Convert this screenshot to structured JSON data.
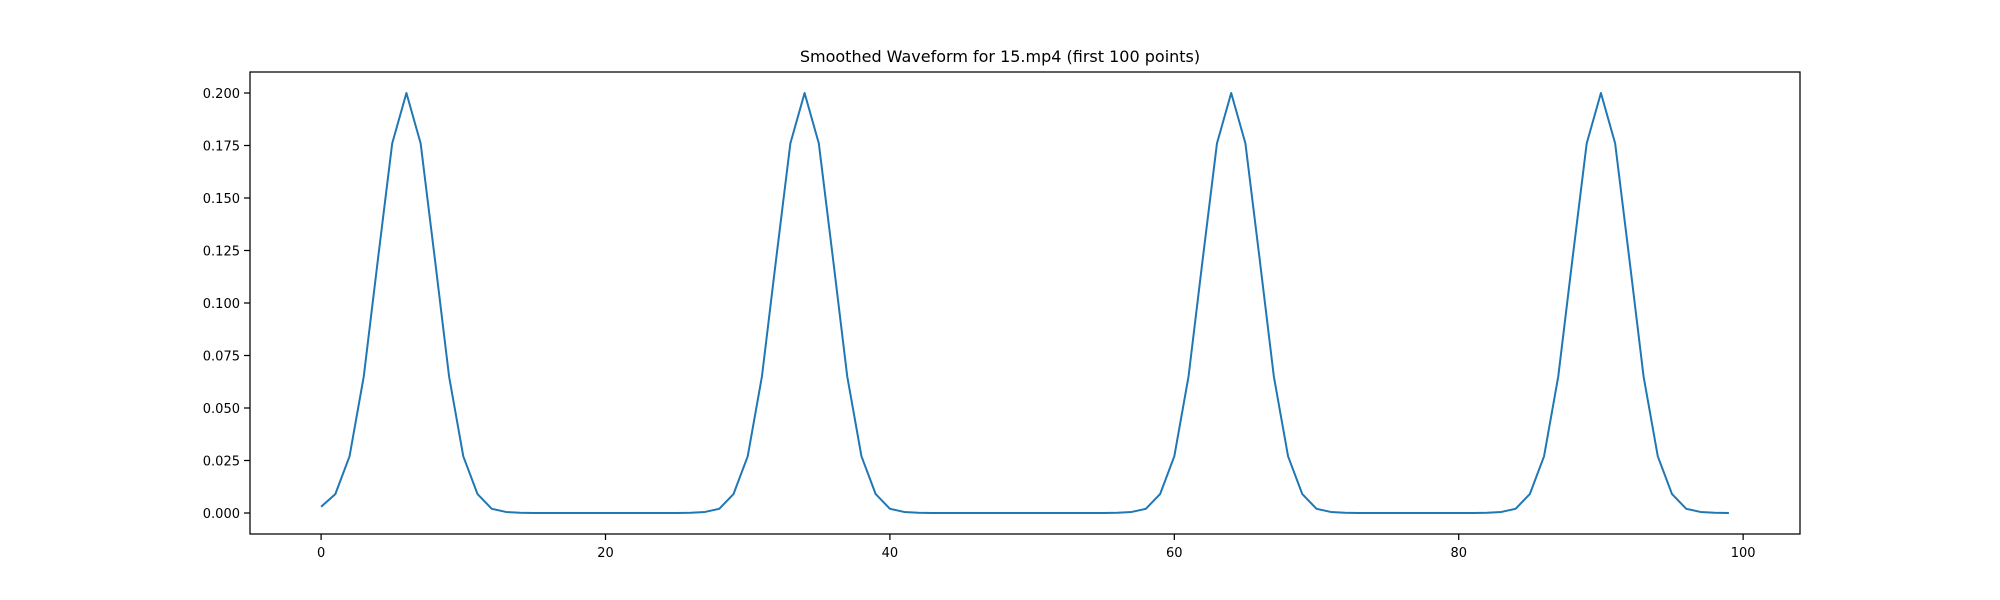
{
  "chart_data": {
    "type": "line",
    "title": "Smoothed Waveform for 15.mp4 (first 100 points)",
    "xlabel": "",
    "ylabel": "",
    "xlim": [
      -5,
      104
    ],
    "ylim": [
      -0.01,
      0.21
    ],
    "xticks": [
      0,
      20,
      40,
      60,
      80,
      100
    ],
    "xtick_labels": [
      "0",
      "20",
      "40",
      "60",
      "80",
      "100"
    ],
    "yticks": [
      0.0,
      0.025,
      0.05,
      0.075,
      0.1,
      0.125,
      0.15,
      0.175,
      0.2
    ],
    "ytick_labels": [
      "0.000",
      "0.025",
      "0.050",
      "0.075",
      "0.100",
      "0.125",
      "0.150",
      "0.175",
      "0.200"
    ],
    "grid": false,
    "legend": false,
    "series": [
      {
        "color": "#1f77b4",
        "x": [
          0,
          1,
          2,
          3,
          4,
          5,
          6,
          7,
          8,
          9,
          10,
          11,
          12,
          13,
          14,
          15,
          16,
          17,
          18,
          19,
          20,
          21,
          22,
          23,
          24,
          25,
          26,
          27,
          28,
          29,
          30,
          31,
          32,
          33,
          34,
          35,
          36,
          37,
          38,
          39,
          40,
          41,
          42,
          43,
          44,
          45,
          46,
          47,
          48,
          49,
          50,
          51,
          52,
          53,
          54,
          55,
          56,
          57,
          58,
          59,
          60,
          61,
          62,
          63,
          64,
          65,
          66,
          67,
          68,
          69,
          70,
          71,
          72,
          73,
          74,
          75,
          76,
          77,
          78,
          79,
          80,
          81,
          82,
          83,
          84,
          85,
          86,
          87,
          88,
          89,
          90,
          91,
          92,
          93,
          94,
          95,
          96,
          97,
          98,
          99
        ],
        "values": [
          0.003,
          0.009,
          0.027,
          0.065,
          0.121,
          0.176,
          0.2,
          0.176,
          0.121,
          0.065,
          0.027,
          0.009,
          0.002,
          0.0005,
          0.0001,
          0,
          0,
          0,
          0,
          0,
          0,
          0,
          0,
          0,
          0,
          0,
          0.0001,
          0.0005,
          0.002,
          0.009,
          0.027,
          0.065,
          0.121,
          0.176,
          0.2,
          0.176,
          0.121,
          0.065,
          0.027,
          0.009,
          0.002,
          0.0005,
          0.0001,
          0,
          0,
          0,
          0,
          0,
          0,
          0,
          0,
          0,
          0,
          0,
          0,
          0,
          0.0001,
          0.0005,
          0.002,
          0.009,
          0.027,
          0.065,
          0.121,
          0.176,
          0.2,
          0.176,
          0.121,
          0.065,
          0.027,
          0.009,
          0.002,
          0.0005,
          0.0001,
          0,
          0,
          0,
          0,
          0,
          0,
          0,
          0,
          0,
          0.0001,
          0.0005,
          0.002,
          0.009,
          0.027,
          0.065,
          0.121,
          0.176,
          0.2,
          0.176,
          0.121,
          0.065,
          0.027,
          0.009,
          0.002,
          0.0005,
          0.0001,
          0
        ]
      }
    ]
  }
}
